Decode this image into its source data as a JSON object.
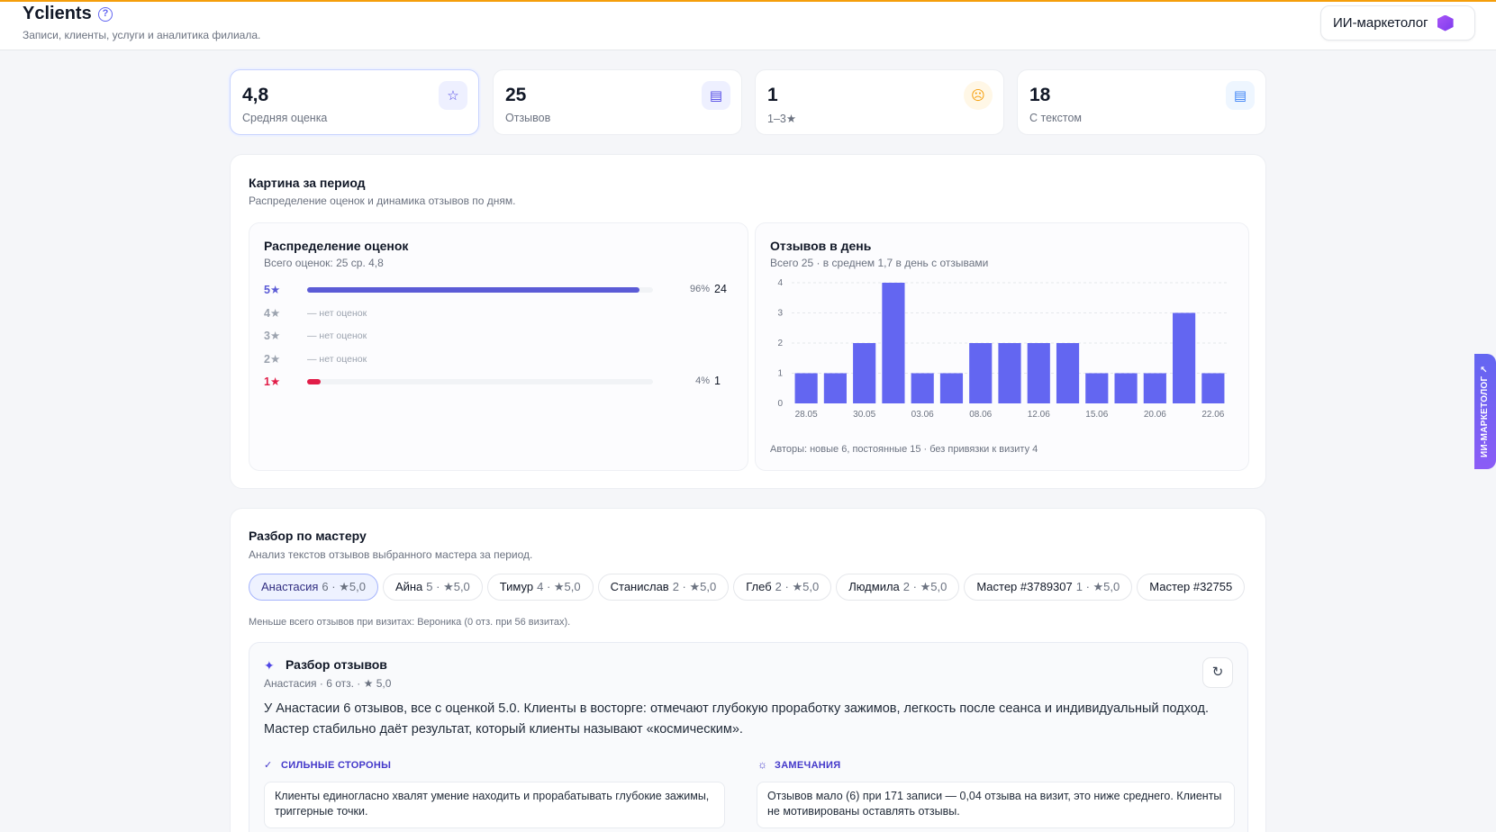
{
  "header": {
    "title": "Yclients",
    "help_glyph": "?",
    "subtitle": "Записи, клиенты, услуги и аналитика филиала.",
    "ai_button_label": "ИИ-маркетолог",
    "side_tab_label": "ИИ-МАРКЕТОЛОГ ↗"
  },
  "stats": [
    {
      "value": "4,8",
      "label": "Средняя оценка",
      "icon": "star-icon",
      "glyph": "☆"
    },
    {
      "value": "25",
      "label": "Отзывов",
      "icon": "message-icon",
      "glyph": "▤"
    },
    {
      "value": "1",
      "label": "1–3★",
      "icon": "frown-icon",
      "glyph": "☹"
    },
    {
      "value": "18",
      "label": "С текстом",
      "icon": "message-text-icon",
      "glyph": "▤"
    }
  ],
  "period": {
    "title": "Картина за период",
    "subtitle": "Распределение оценок и динамика отзывов по дням."
  },
  "distribution": {
    "title": "Распределение оценок",
    "subtitle": "Всего оценок: 25   ср. 4,8",
    "no_ratings": "— нет оценок",
    "rows": [
      {
        "star": "5★",
        "fraction": 0.96,
        "pct": "96%",
        "count": "24",
        "color": "#5b5bd6"
      },
      {
        "star": "4★",
        "fraction": 0,
        "pct": "",
        "count": "",
        "color": "#9ca3af"
      },
      {
        "star": "3★",
        "fraction": 0,
        "pct": "",
        "count": "",
        "color": "#9ca3af"
      },
      {
        "star": "2★",
        "fraction": 0,
        "pct": "",
        "count": "",
        "color": "#9ca3af"
      },
      {
        "star": "1★",
        "fraction": 0.04,
        "pct": "4%",
        "count": "1",
        "color": "#e11d48"
      }
    ]
  },
  "chart_data": {
    "type": "bar",
    "title": "Отзывов в день",
    "subtitle": "Всего 25 · в среднем 1,7 в день с отзывами",
    "categories": [
      "28.05",
      "",
      "30.05",
      "",
      "03.06",
      "",
      "08.06",
      "",
      "12.06",
      "",
      "15.06",
      "",
      "20.06",
      "",
      "22.06"
    ],
    "values": [
      1,
      1,
      2,
      4,
      1,
      1,
      2,
      2,
      2,
      2,
      1,
      1,
      1,
      3,
      1
    ],
    "yticks": [
      0,
      1,
      2,
      3,
      4
    ],
    "ylim": [
      0,
      4
    ],
    "bar_color": "#6366f1",
    "grid": true,
    "footnote": "Авторы: новые 6, постоянные 15 · без привязки к визиту 4"
  },
  "master": {
    "title": "Разбор по мастеру",
    "subtitle": "Анализ текстов отзывов выбранного мастера за период.",
    "chips": [
      {
        "name": "Анастасия",
        "meta": "6 · ★5,0",
        "active": true
      },
      {
        "name": "Айна",
        "meta": "5 · ★5,0"
      },
      {
        "name": "Тимур",
        "meta": "4 · ★5,0"
      },
      {
        "name": "Станислав",
        "meta": "2 · ★5,0"
      },
      {
        "name": "Глеб",
        "meta": "2 · ★5,0"
      },
      {
        "name": "Людмила",
        "meta": "2 · ★5,0"
      },
      {
        "name": "Мастер #3789307",
        "meta": "1 · ★5,0"
      },
      {
        "name": "Мастер #32755",
        "meta": ""
      }
    ],
    "least_note": "Меньше всего отзывов при визитах: Вероника (0 отз. при 56 визитах)."
  },
  "review": {
    "title": "Разбор отзывов",
    "meta": "Анастасия · 6 отз. · ★ 5,0",
    "summary": "У Анастасии 6 отзывов, все с оценкой 5.0. Клиенты в восторге: отмечают глубокую проработку зажимов, легкость после сеанса и индивидуальный подход. Мастер стабильно даёт результат, который клиенты называют «космическим».",
    "strengths_title": "СИЛЬНЫЕ СТОРОНЫ",
    "strengths_text": "Клиенты единогласно хвалят умение находить и прорабатывать глубокие зажимы, триггерные точки.",
    "remarks_title": "ЗАМЕЧАНИЯ",
    "remarks_text": "Отзывов мало (6) при 171 записи — 0,04 отзыва на визит, это ниже среднего. Клиенты не мотивированы оставлять отзывы.",
    "sparkle_glyph": "✦",
    "check_glyph": "✓",
    "bulb_glyph": "☼",
    "refresh_glyph": "↻"
  }
}
